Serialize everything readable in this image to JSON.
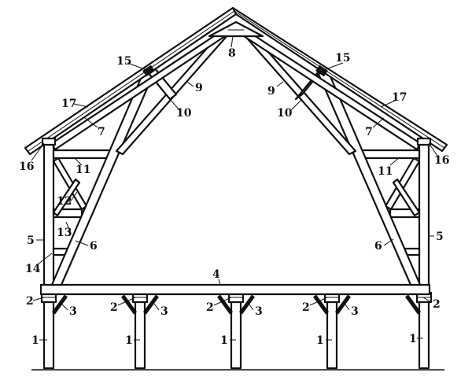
{
  "labels": {
    "post": "1",
    "post_cap": "2",
    "post_brace": "3",
    "girt": "4",
    "wall_post": "5",
    "main_rafter_strut": "6",
    "rafter_strut": "7",
    "ridge_block": "8",
    "collar_brace": "9",
    "collar_strut": "10",
    "upper_tie": "11",
    "brace": "12",
    "knee_brace": "13",
    "lower_tie": "14",
    "purlin": "15",
    "plate": "16",
    "rafter": "17"
  }
}
